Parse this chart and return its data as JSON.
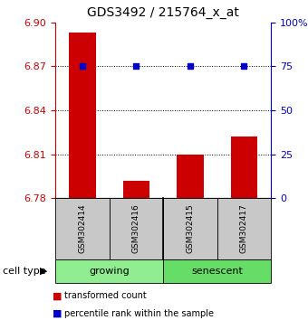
{
  "title": "GDS3492 / 215764_x_at",
  "samples": [
    "GSM302414",
    "GSM302416",
    "GSM302415",
    "GSM302417"
  ],
  "bar_values": [
    6.893,
    6.792,
    6.81,
    6.822
  ],
  "bar_baseline": 6.78,
  "percentile_values": [
    75,
    75,
    75,
    75
  ],
  "ylim_left": [
    6.78,
    6.9
  ],
  "ylim_right": [
    0,
    100
  ],
  "yticks_left": [
    6.78,
    6.81,
    6.84,
    6.87,
    6.9
  ],
  "yticks_right": [
    0,
    25,
    50,
    75,
    100
  ],
  "ytick_labels_right": [
    "0",
    "25",
    "50",
    "75",
    "100%"
  ],
  "bar_color": "#CC0000",
  "dot_color": "#0000CC",
  "cell_type_label": "cell type",
  "legend_red": "transformed count",
  "legend_blue": "percentile rank within the sample",
  "axis_color_left": "#CC0000",
  "axis_color_right": "#0000CC",
  "bar_width": 0.5,
  "background_label": "#C8C8C8",
  "growing_color": "#90EE90",
  "senescent_color": "#66DD66",
  "grid_ticks": [
    6.81,
    6.84,
    6.87
  ]
}
